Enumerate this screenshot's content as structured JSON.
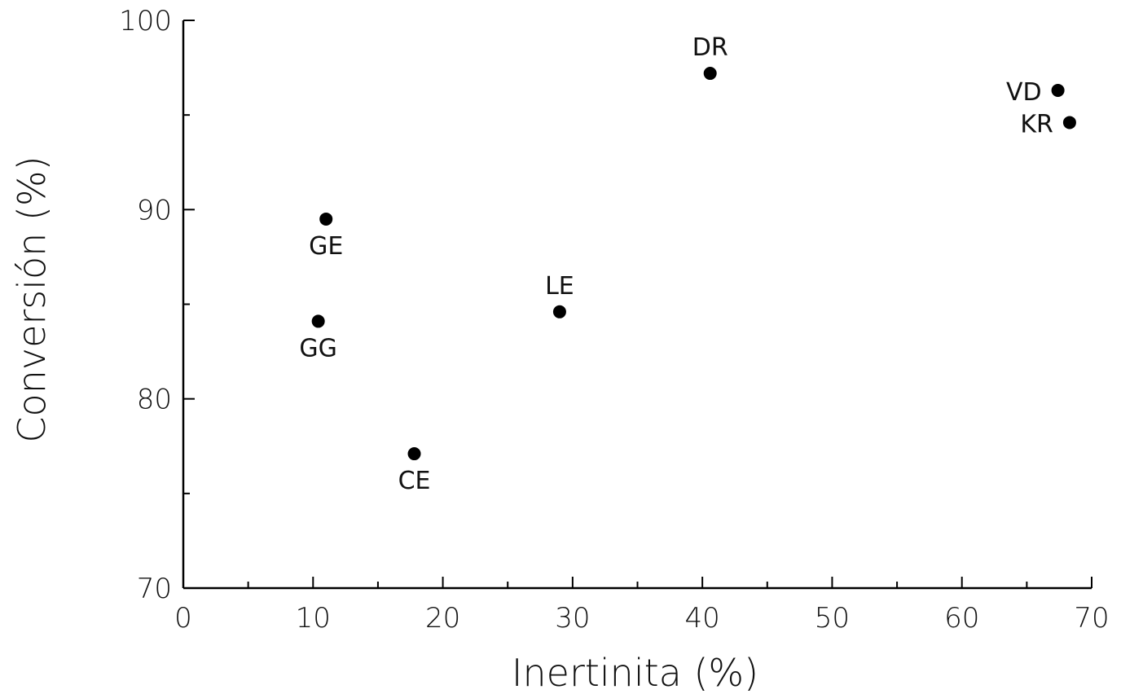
{
  "chart_data": {
    "type": "scatter",
    "title": "",
    "xlabel": "Inertinita (%)",
    "ylabel": "Conversión (%)",
    "xlim": [
      0,
      70
    ],
    "ylim": [
      70,
      100
    ],
    "xticks": [
      "0",
      "10",
      "20",
      "30",
      "40",
      "50",
      "60",
      "70"
    ],
    "yticks": [
      "70",
      "80",
      "90",
      "100"
    ],
    "grid": false,
    "legend": "none",
    "marker_color": "#000000",
    "points": [
      {
        "label": "DR",
        "x": 40.6,
        "y": 97.2,
        "label_pos": "above"
      },
      {
        "label": "VD",
        "x": 67.4,
        "y": 96.3,
        "label_pos": "left"
      },
      {
        "label": "KR",
        "x": 68.3,
        "y": 94.6,
        "label_pos": "left"
      },
      {
        "label": "GE",
        "x": 11.0,
        "y": 89.5,
        "label_pos": "below"
      },
      {
        "label": "LE",
        "x": 29.0,
        "y": 84.6,
        "label_pos": "above"
      },
      {
        "label": "GG",
        "x": 10.4,
        "y": 84.1,
        "label_pos": "below"
      },
      {
        "label": "CE",
        "x": 17.8,
        "y": 77.1,
        "label_pos": "below"
      }
    ]
  }
}
